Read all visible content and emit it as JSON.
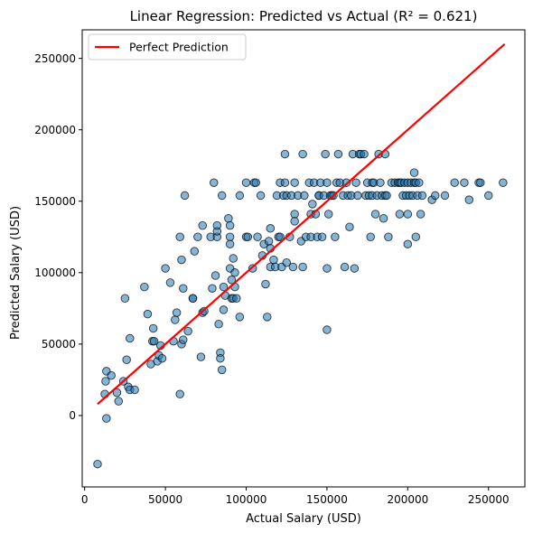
{
  "chart_data": {
    "type": "scatter",
    "title": "Linear Regression: Predicted vs Actual (R² = 0.621)",
    "xlabel": "Actual Salary (USD)",
    "ylabel": "Predicted Salary (USD)",
    "xlim": [
      -1500,
      272500
    ],
    "ylim": [
      -50000,
      270000
    ],
    "xticks": [
      0,
      50000,
      100000,
      150000,
      200000,
      250000
    ],
    "yticks": [
      0,
      50000,
      100000,
      150000,
      200000,
      250000
    ],
    "xtick_labels": [
      "0",
      "50000",
      "100000",
      "150000",
      "200000",
      "250000"
    ],
    "ytick_labels": [
      "0",
      "50000",
      "100000",
      "150000",
      "200000",
      "250000"
    ],
    "grid": false,
    "legend": {
      "position": "top-left",
      "entries": [
        "Perfect Prediction"
      ]
    },
    "colors": {
      "points": "#1f77b4",
      "line": "#ff0000"
    },
    "series": [
      {
        "name": "",
        "kind": "points",
        "points": [
          [
            8000,
            -34000
          ],
          [
            13500,
            -2000
          ],
          [
            12500,
            15000
          ],
          [
            13000,
            24000
          ],
          [
            13500,
            31000
          ],
          [
            16500,
            28000
          ],
          [
            20000,
            16000
          ],
          [
            21000,
            10000
          ],
          [
            24000,
            24000
          ],
          [
            25000,
            82000
          ],
          [
            26000,
            39000
          ],
          [
            27000,
            20000
          ],
          [
            28000,
            54000
          ],
          [
            28000,
            18000
          ],
          [
            31000,
            18000
          ],
          [
            37000,
            90000
          ],
          [
            39000,
            71000
          ],
          [
            41000,
            36000
          ],
          [
            42000,
            52000
          ],
          [
            42500,
            61000
          ],
          [
            43000,
            52000
          ],
          [
            45000,
            38000
          ],
          [
            46000,
            42000
          ],
          [
            47000,
            49000
          ],
          [
            48000,
            40000
          ],
          [
            50000,
            103000
          ],
          [
            53000,
            93000
          ],
          [
            55000,
            52000
          ],
          [
            56000,
            67000
          ],
          [
            57000,
            72000
          ],
          [
            59000,
            15000
          ],
          [
            59000,
            125000
          ],
          [
            60000,
            50000
          ],
          [
            60000,
            109000
          ],
          [
            61000,
            89000
          ],
          [
            61000,
            53000
          ],
          [
            62000,
            154000
          ],
          [
            64000,
            59000
          ],
          [
            67000,
            82000
          ],
          [
            67000,
            82000
          ],
          [
            68000,
            115000
          ],
          [
            70000,
            125000
          ],
          [
            72000,
            41000
          ],
          [
            73000,
            72000
          ],
          [
            73000,
            133000
          ],
          [
            74000,
            73000
          ],
          [
            78000,
            125000
          ],
          [
            79000,
            89000
          ],
          [
            80000,
            163000
          ],
          [
            81000,
            98000
          ],
          [
            82000,
            125000
          ],
          [
            82000,
            129000
          ],
          [
            82000,
            133000
          ],
          [
            83000,
            64000
          ],
          [
            84000,
            44000
          ],
          [
            84000,
            40000
          ],
          [
            85000,
            32000
          ],
          [
            85000,
            154000
          ],
          [
            86000,
            90000
          ],
          [
            86000,
            74000
          ],
          [
            87000,
            84000
          ],
          [
            89000,
            138000
          ],
          [
            90000,
            133000
          ],
          [
            90000,
            125000
          ],
          [
            90000,
            120000
          ],
          [
            90000,
            103000
          ],
          [
            91000,
            95000
          ],
          [
            91000,
            82000
          ],
          [
            92000,
            82000
          ],
          [
            92000,
            110000
          ],
          [
            93000,
            90000
          ],
          [
            93000,
            100000
          ],
          [
            94000,
            82000
          ],
          [
            96000,
            69000
          ],
          [
            96000,
            154000
          ],
          [
            100000,
            125000
          ],
          [
            100000,
            163000
          ],
          [
            101000,
            125000
          ],
          [
            104000,
            103000
          ],
          [
            105000,
            163000
          ],
          [
            106000,
            163000
          ],
          [
            107000,
            125000
          ],
          [
            109000,
            154000
          ],
          [
            110000,
            112000
          ],
          [
            111000,
            120000
          ],
          [
            112000,
            92000
          ],
          [
            113000,
            69000
          ],
          [
            114000,
            122000
          ],
          [
            115000,
            104000
          ],
          [
            115000,
            131000
          ],
          [
            115000,
            117000
          ],
          [
            117000,
            109000
          ],
          [
            118000,
            104000
          ],
          [
            119000,
            154000
          ],
          [
            120000,
            125000
          ],
          [
            121000,
            163000
          ],
          [
            121000,
            125000
          ],
          [
            122000,
            104000
          ],
          [
            123000,
            154000
          ],
          [
            124000,
            163000
          ],
          [
            124000,
            183000
          ],
          [
            125000,
            107000
          ],
          [
            125000,
            154000
          ],
          [
            127000,
            125000
          ],
          [
            128000,
            154000
          ],
          [
            129000,
            104000
          ],
          [
            130000,
            141000
          ],
          [
            130000,
            163000
          ],
          [
            130000,
            136000
          ],
          [
            132000,
            154000
          ],
          [
            134000,
            122000
          ],
          [
            135000,
            183000
          ],
          [
            135000,
            104000
          ],
          [
            136000,
            154000
          ],
          [
            137000,
            125000
          ],
          [
            139000,
            163000
          ],
          [
            140000,
            125000
          ],
          [
            140000,
            141000
          ],
          [
            141000,
            148000
          ],
          [
            142000,
            163000
          ],
          [
            143000,
            141000
          ],
          [
            144000,
            125000
          ],
          [
            145000,
            154000
          ],
          [
            145000,
            154000
          ],
          [
            146000,
            163000
          ],
          [
            147000,
            125000
          ],
          [
            148000,
            154000
          ],
          [
            149000,
            183000
          ],
          [
            150000,
            60000
          ],
          [
            150000,
            103000
          ],
          [
            150000,
            163000
          ],
          [
            151000,
            141000
          ],
          [
            152000,
            154000
          ],
          [
            153000,
            154000
          ],
          [
            154000,
            154000
          ],
          [
            155000,
            125000
          ],
          [
            156000,
            163000
          ],
          [
            157000,
            183000
          ],
          [
            158000,
            163000
          ],
          [
            160000,
            154000
          ],
          [
            161000,
            104000
          ],
          [
            162000,
            163000
          ],
          [
            163000,
            154000
          ],
          [
            164000,
            132000
          ],
          [
            165000,
            154000
          ],
          [
            166000,
            183000
          ],
          [
            167000,
            103000
          ],
          [
            168000,
            163000
          ],
          [
            169000,
            154000
          ],
          [
            170000,
            183000
          ],
          [
            171000,
            183000
          ],
          [
            173000,
            183000
          ],
          [
            174000,
            154000
          ],
          [
            175000,
            163000
          ],
          [
            176000,
            154000
          ],
          [
            177000,
            125000
          ],
          [
            178000,
            163000
          ],
          [
            178000,
            154000
          ],
          [
            179000,
            163000
          ],
          [
            180000,
            141000
          ],
          [
            181000,
            154000
          ],
          [
            182000,
            183000
          ],
          [
            183000,
            163000
          ],
          [
            184000,
            154000
          ],
          [
            185000,
            138000
          ],
          [
            186000,
            183000
          ],
          [
            186000,
            154000
          ],
          [
            187000,
            154000
          ],
          [
            188000,
            125000
          ],
          [
            190000,
            163000
          ],
          [
            192000,
            163000
          ],
          [
            194000,
            163000
          ],
          [
            195000,
            141000
          ],
          [
            195000,
            163000
          ],
          [
            196000,
            163000
          ],
          [
            197000,
            154000
          ],
          [
            198000,
            163000
          ],
          [
            199000,
            154000
          ],
          [
            200000,
            163000
          ],
          [
            200000,
            141000
          ],
          [
            200000,
            120000
          ],
          [
            201000,
            154000
          ],
          [
            202000,
            163000
          ],
          [
            203000,
            154000
          ],
          [
            204000,
            163000
          ],
          [
            204000,
            170000
          ],
          [
            205000,
            163000
          ],
          [
            205000,
            125000
          ],
          [
            206000,
            154000
          ],
          [
            207000,
            163000
          ],
          [
            208000,
            141000
          ],
          [
            209000,
            154000
          ],
          [
            215000,
            151000
          ],
          [
            217000,
            154000
          ],
          [
            223000,
            154000
          ],
          [
            229000,
            163000
          ],
          [
            235000,
            163000
          ],
          [
            238000,
            151000
          ],
          [
            244000,
            163000
          ],
          [
            245000,
            163000
          ],
          [
            250000,
            154000
          ],
          [
            259000,
            163000
          ]
        ]
      },
      {
        "name": "Perfect Prediction",
        "kind": "line",
        "points": [
          [
            8000,
            8000
          ],
          [
            260000,
            260000
          ]
        ]
      }
    ]
  }
}
